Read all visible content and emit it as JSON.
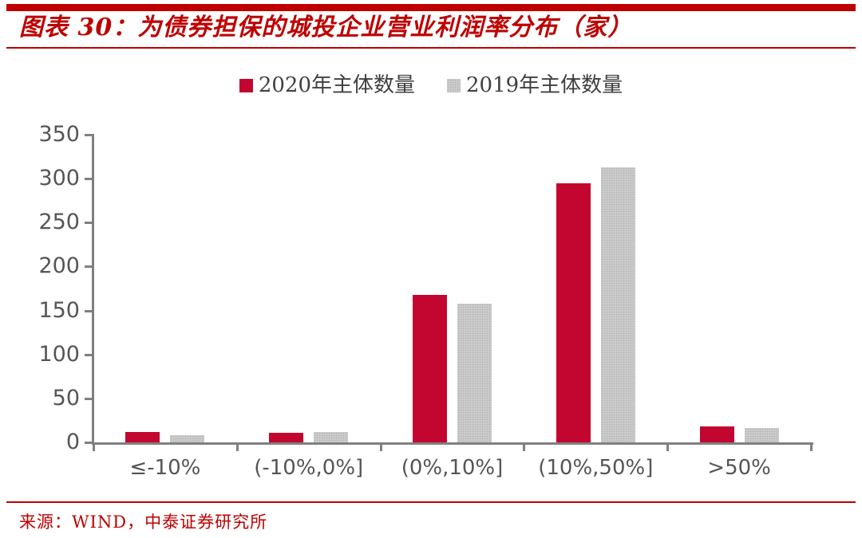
{
  "header": {
    "title": "图表 30：为债券担保的城投企业营业利润率分布（家）"
  },
  "legend": [
    {
      "label": "2020年主体数量",
      "color": "#C2062F",
      "textured": false
    },
    {
      "label": "2019年主体数量",
      "color": "#CDCDCD",
      "textured": true
    }
  ],
  "chart_data": {
    "type": "bar",
    "title": "为债券担保的城投企业营业利润率分布（家）",
    "categories": [
      "≤-10%",
      "(-10%,0%]",
      "(0%,10%]",
      "(10%,50%]",
      ">50%"
    ],
    "series": [
      {
        "name": "2020年主体数量",
        "color": "#C2062F",
        "textured": false,
        "values": [
          12,
          11,
          168,
          295,
          18
        ]
      },
      {
        "name": "2019年主体数量",
        "color": "#CDCDCD",
        "textured": true,
        "values": [
          8,
          12,
          158,
          313,
          16
        ]
      }
    ],
    "xlabel": "",
    "ylabel": "",
    "ylim": [
      0,
      350
    ],
    "yticks": [
      0,
      50,
      100,
      150,
      200,
      250,
      300,
      350
    ],
    "grid": false,
    "legend_position": "top",
    "axis_color": "#808080",
    "tick_label_color": "#555555"
  },
  "footer": {
    "source": "来源：WIND，中泰证券研究所"
  }
}
